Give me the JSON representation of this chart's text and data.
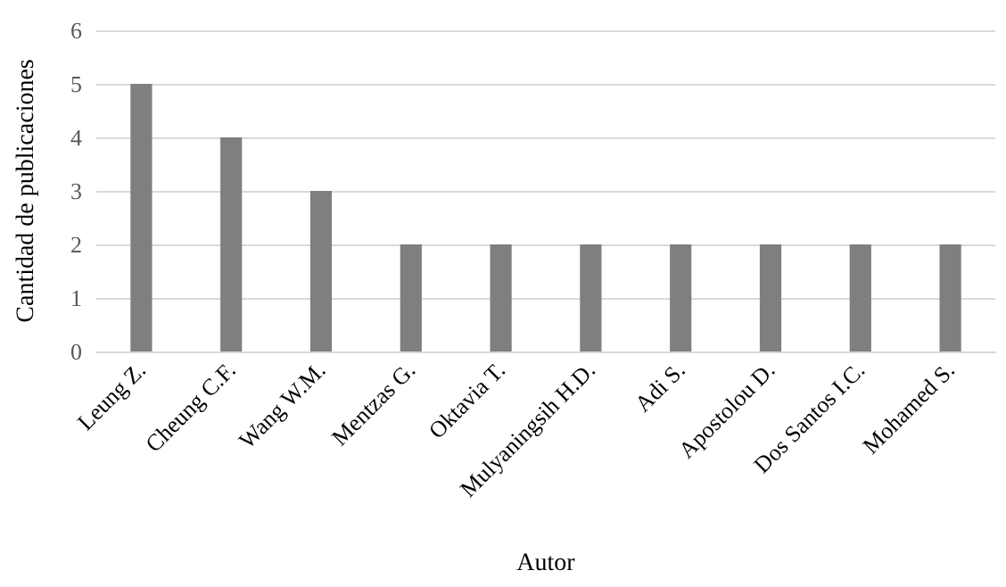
{
  "chart_data": {
    "type": "bar",
    "xlabel": "Autor",
    "ylabel": "Cantidad de publicaciones",
    "categories": [
      "Leung Z.",
      "Cheung C.F.",
      "Wang W.M.",
      "Mentzas G.",
      "Oktavia T.",
      "Mulyaningsih H.D.",
      "Adi S.",
      "Apostolou D.",
      "Dos Santos I.C.",
      "Mohamed S."
    ],
    "values": [
      5,
      4,
      3,
      2,
      2,
      2,
      2,
      2,
      2,
      2
    ],
    "color": "#7f7f7f",
    "ylim": [
      0,
      6
    ],
    "yticks": [
      0,
      1,
      2,
      3,
      4,
      5,
      6
    ],
    "grid": "y"
  }
}
